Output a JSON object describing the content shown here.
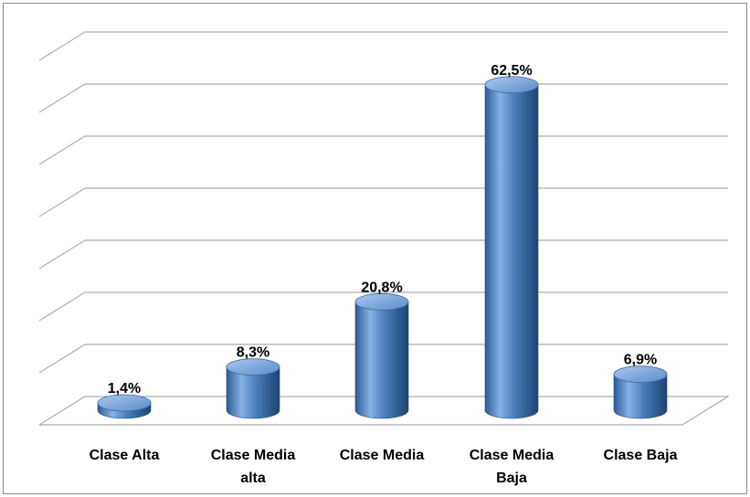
{
  "chart_data": {
    "type": "bar",
    "style": "3d-cylinder",
    "categories": [
      "Clase Alta",
      "Clase Media alta",
      "Clase Media",
      "Clase Media Baja",
      "Clase Baja"
    ],
    "category_lines": [
      [
        "Clase Alta"
      ],
      [
        "Clase Media",
        "alta"
      ],
      [
        "Clase Media"
      ],
      [
        "Clase Media",
        "Baja"
      ],
      [
        "Clase Baja"
      ]
    ],
    "values": [
      1.4,
      8.3,
      20.8,
      62.5,
      6.9
    ],
    "data_labels": [
      "1,4%",
      "8,3%",
      "20,8%",
      "62,5%",
      "6,9%"
    ],
    "ylim": [
      0,
      70
    ],
    "gridlines": 7,
    "grid": true,
    "legend": "none",
    "colors": {
      "bar": "#4a7ebb",
      "bar_light": "#9dc0ea",
      "bar_dark": "#1f4778",
      "grid": "#9a9a9a",
      "frame": "#8c8c8c"
    }
  }
}
